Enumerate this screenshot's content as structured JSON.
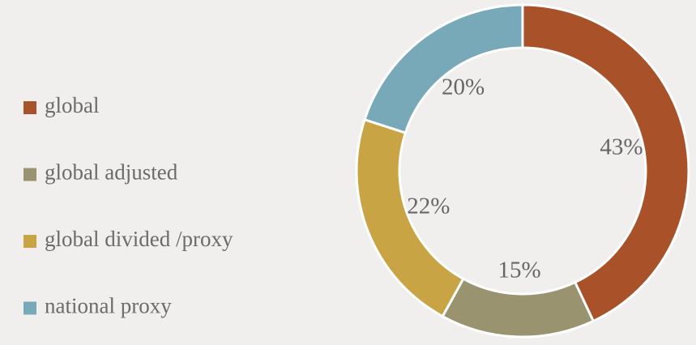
{
  "chart_data": {
    "type": "donut",
    "categories": [
      "global",
      "global adjusted",
      "global divided /proxy",
      "national proxy"
    ],
    "values": [
      43,
      15,
      22,
      20
    ],
    "value_labels": [
      "43%",
      "15%",
      "22%",
      "20%"
    ],
    "colors": [
      "#a9522a",
      "#9a9370",
      "#c9a444",
      "#78a9b8"
    ],
    "legend": "left"
  }
}
